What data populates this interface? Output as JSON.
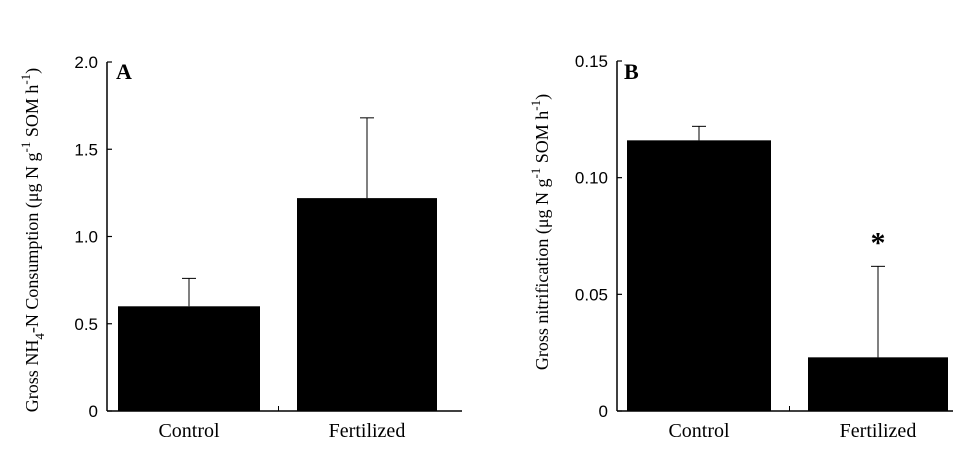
{
  "chart_data": [
    {
      "type": "bar",
      "panel_label": "A",
      "categories": [
        "Control",
        "Fertilized"
      ],
      "values": [
        0.6,
        1.22
      ],
      "errors": [
        0.16,
        0.46
      ],
      "ylabel": {
        "main": "Gross NH",
        "sub": "4",
        "rest": "-N Consumption (μg N g",
        "sup": "-1",
        "end": " SOM h",
        "sup2": "-1",
        "close": ")"
      },
      "ylim": [
        0,
        2.0
      ],
      "yticks": [
        "0",
        "0.5",
        "1.0",
        "1.5",
        "2.0"
      ],
      "annotations": [
        "",
        ""
      ],
      "bar_color": "#000000"
    },
    {
      "type": "bar",
      "panel_label": "B",
      "categories": [
        "Control",
        "Fertilized"
      ],
      "values": [
        0.116,
        0.023
      ],
      "errors": [
        0.006,
        0.039
      ],
      "ylabel": {
        "main": "Gross nitrification (μg N g",
        "sup": "-1",
        "end": " SOM h",
        "sup2": "-1",
        "close": ")"
      },
      "ylim": [
        0,
        0.15
      ],
      "yticks": [
        "0",
        "0.05",
        "0.10",
        "0.15"
      ],
      "annotations": [
        "",
        "*"
      ],
      "bar_color": "#000000"
    }
  ]
}
